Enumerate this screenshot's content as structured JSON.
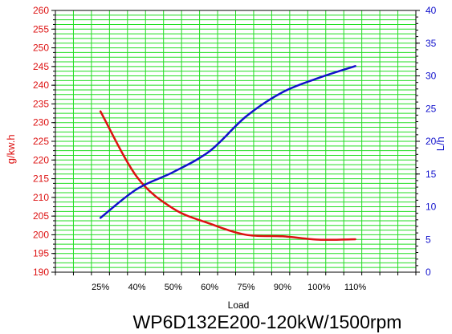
{
  "chart_data": {
    "type": "line",
    "title": "",
    "caption": "WP6D132E200-120kW/1500rpm",
    "xlabel": "Load",
    "categories": [
      "25%",
      "40%",
      "50%",
      "60%",
      "75%",
      "90%",
      "100%",
      "110%"
    ],
    "left_axis": {
      "label": "g/kw.h",
      "color": "#dd1111",
      "ylim": [
        190,
        260
      ],
      "ticks": [
        190,
        195,
        200,
        205,
        210,
        215,
        220,
        225,
        230,
        235,
        240,
        245,
        250,
        255,
        260
      ]
    },
    "right_axis": {
      "label": "L/h",
      "color": "#1111cc",
      "ylim": [
        0,
        40
      ],
      "ticks": [
        0,
        5,
        10,
        15,
        20,
        25,
        30,
        35,
        40
      ]
    },
    "series": [
      {
        "axis": "left",
        "color": "#dd1111",
        "values": [
          233,
          215.5,
          207,
          203,
          200,
          199.6,
          198.7,
          198.8
        ]
      },
      {
        "axis": "right",
        "color": "#1111cc",
        "values": [
          8.3,
          12.7,
          15.3,
          18.5,
          23.8,
          27.5,
          29.7,
          31.5
        ]
      }
    ],
    "grid": true,
    "grid_color": "#22dd22",
    "legend": "none"
  }
}
